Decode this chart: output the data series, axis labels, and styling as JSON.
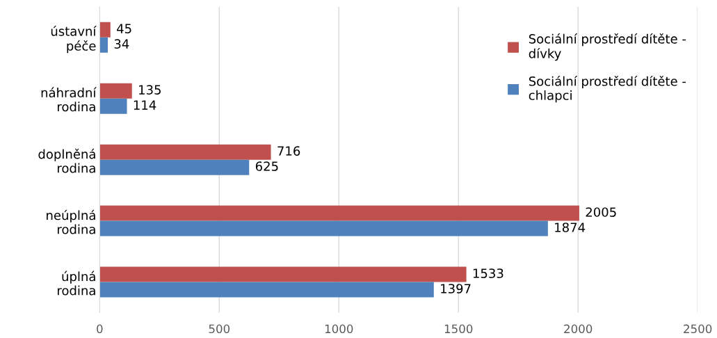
{
  "chart_data": {
    "type": "bar",
    "orientation": "horizontal",
    "categories": [
      "ústavní péče",
      "náhradní rodina",
      "doplněná rodina",
      "neúplná rodina",
      "úplná rodina"
    ],
    "series": [
      {
        "name": "Sociální prostředí dítěte - dívky",
        "color": "#c0504d",
        "values": [
          45,
          135,
          716,
          2005,
          1533
        ]
      },
      {
        "name": "Sociální prostředí dítěte - chlapci",
        "color": "#4f81bd",
        "values": [
          34,
          114,
          625,
          1874,
          1397
        ]
      }
    ],
    "xlim": [
      0,
      2500
    ],
    "xticks": [
      0,
      500,
      1000,
      1500,
      2000,
      2500
    ],
    "grid": "x",
    "legend": "top right",
    "data_labels": true
  }
}
